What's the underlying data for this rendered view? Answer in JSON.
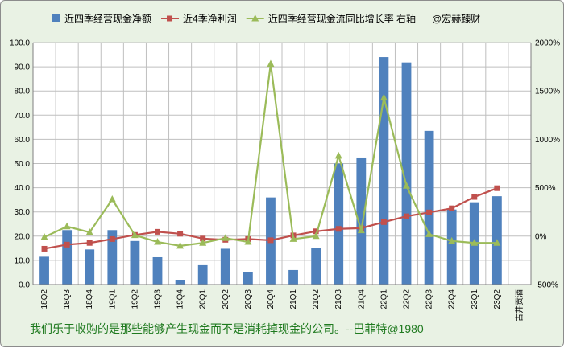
{
  "chart_data": {
    "type": "bar",
    "categories": [
      "18Q2",
      "18Q3",
      "18Q4",
      "19Q1",
      "19Q2",
      "19Q3",
      "19Q4",
      "20Q1",
      "20Q2",
      "20Q3",
      "20Q4",
      "21Q1",
      "21Q2",
      "21Q3",
      "21Q4",
      "22Q1",
      "22Q2",
      "22Q3",
      "22Q4",
      "23Q1",
      "23Q2",
      "古井贡酒"
    ],
    "series": [
      {
        "name": "近四季经营现金净额",
        "kind": "bar",
        "axis": "left",
        "color": "#4f81bd",
        "values": [
          11.5,
          22.5,
          14.5,
          22.5,
          18,
          11.3,
          1.8,
          8,
          14.8,
          5.2,
          36,
          6,
          15.2,
          50,
          52.5,
          94,
          91.8,
          63.5,
          31,
          34,
          36.5,
          null
        ]
      },
      {
        "name": "近4季净利润",
        "kind": "line",
        "axis": "left",
        "color": "#c0504d",
        "marker": "square",
        "values": [
          14.8,
          16.5,
          17.2,
          18.8,
          20.5,
          21.8,
          21,
          19,
          18.5,
          18.8,
          18.3,
          20.3,
          22,
          23,
          23.3,
          25.8,
          28.2,
          29.8,
          31.5,
          36.2,
          39.8,
          null
        ]
      },
      {
        "name": "近四季经营现金流同比增长率 右轴",
        "kind": "line",
        "axis": "right",
        "color": "#9bbb59",
        "marker": "triangle",
        "values": [
          -10,
          100,
          40,
          380,
          10,
          -60,
          -100,
          -70,
          -20,
          -60,
          1780,
          -30,
          0,
          830,
          60,
          1430,
          520,
          20,
          -50,
          -70,
          -70,
          null
        ]
      }
    ],
    "y_left": {
      "min": 0,
      "max": 100,
      "step": 10,
      "ticks": [
        "0.0",
        "10.0",
        "20.0",
        "30.0",
        "40.0",
        "50.0",
        "60.0",
        "70.0",
        "80.0",
        "90.0",
        "100.0"
      ]
    },
    "y_right": {
      "min": -500,
      "max": 2000,
      "step": 500,
      "ticks": [
        "-500%",
        "0%",
        "500%",
        "1000%",
        "1500%",
        "2000%"
      ]
    },
    "grid": true,
    "legend_position": "top",
    "watermark": "@宏赫臻财",
    "quote": "我们乐于收购的是那些能够产生现金而不是消耗掉现金的公司。--巴菲特@1980"
  }
}
